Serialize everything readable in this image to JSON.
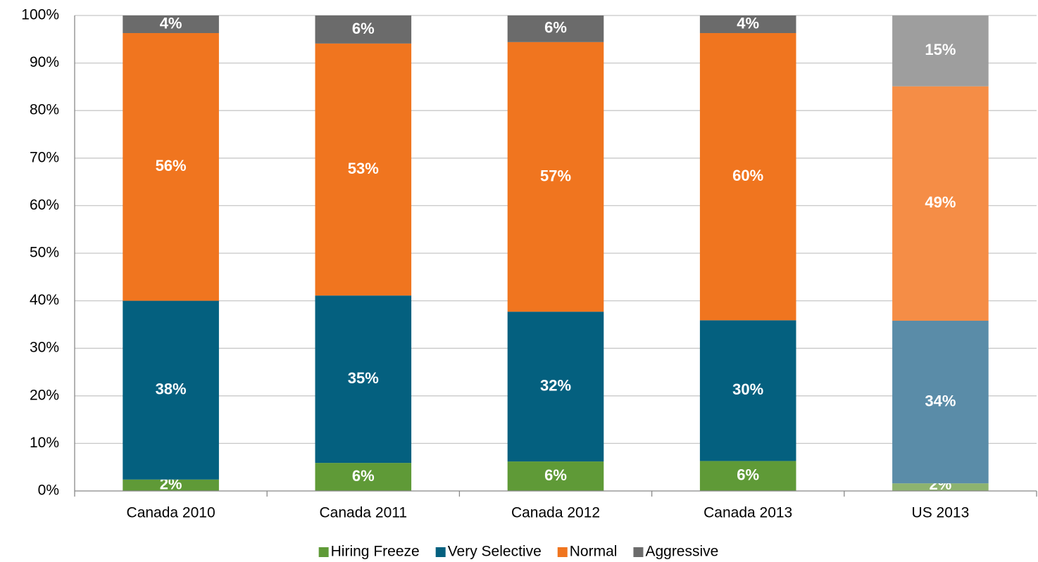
{
  "chart_data": {
    "type": "stacked_bar",
    "categories": [
      "Canada 2010",
      "Canada 2011",
      "Canada 2012",
      "Canada 2013",
      "US 2013"
    ],
    "series": [
      {
        "name": "Hiring Freeze",
        "color": "#5f9a37",
        "colors": [
          "#5f9a37",
          "#5f9a37",
          "#5f9a37",
          "#5f9a37",
          "#8db36f"
        ],
        "values": [
          2.4,
          5.9,
          6.2,
          6.3,
          1.6
        ],
        "value_labels": [
          "2%",
          "6%",
          "6%",
          "6%",
          "2%"
        ]
      },
      {
        "name": "Very Selective",
        "color": "#04607f",
        "colors": [
          "#04607f",
          "#04607f",
          "#04607f",
          "#04607f",
          "#5a8ca8"
        ],
        "values": [
          37.6,
          35.2,
          31.5,
          29.6,
          34.2
        ],
        "value_labels": [
          "38%",
          "35%",
          "32%",
          "30%",
          "34%"
        ]
      },
      {
        "name": "Normal",
        "color": "#f0751f",
        "colors": [
          "#f0751f",
          "#f0751f",
          "#f0751f",
          "#f0751f",
          "#f58d46"
        ],
        "values": [
          56.3,
          53.0,
          56.7,
          60.4,
          49.3
        ],
        "value_labels": [
          "56%",
          "53%",
          "57%",
          "60%",
          "49%"
        ]
      },
      {
        "name": "Aggressive",
        "color": "#6b6b6b",
        "colors": [
          "#6b6b6b",
          "#6b6b6b",
          "#6b6b6b",
          "#6b6b6b",
          "#9e9e9e"
        ],
        "values": [
          3.7,
          5.9,
          5.6,
          3.7,
          14.9
        ],
        "value_labels": [
          "4%",
          "6%",
          "6%",
          "4%",
          "15%"
        ]
      }
    ],
    "ylim": [
      0,
      100
    ],
    "yticks": [
      {
        "value": 0,
        "label": "0%"
      },
      {
        "value": 10,
        "label": "10%"
      },
      {
        "value": 20,
        "label": "20%"
      },
      {
        "value": 30,
        "label": "30%"
      },
      {
        "value": 40,
        "label": "40%"
      },
      {
        "value": 50,
        "label": "50%"
      },
      {
        "value": 60,
        "label": "60%"
      },
      {
        "value": 70,
        "label": "70%"
      },
      {
        "value": 80,
        "label": "80%"
      },
      {
        "value": 90,
        "label": "90%"
      },
      {
        "value": 100,
        "label": "100%"
      }
    ],
    "grid": true,
    "legend": "bottom"
  }
}
